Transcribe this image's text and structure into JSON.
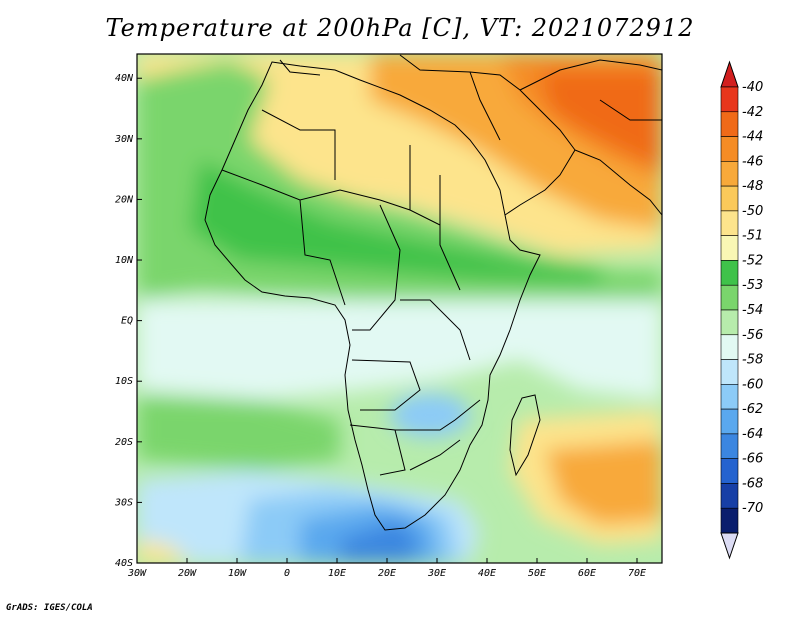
{
  "title": "Temperature at 200hPa [C], VT: 2021072912",
  "credit": "GrADS: IGES/COLA",
  "map": {
    "lon_ticks": [
      "30W",
      "20W",
      "10W",
      "0",
      "10E",
      "20E",
      "30E",
      "40E",
      "50E",
      "60E",
      "70E"
    ],
    "lat_ticks": [
      "40S",
      "30S",
      "20S",
      "10S",
      "EQ",
      "10N",
      "20N",
      "30N",
      "40N"
    ],
    "lon_range": [
      -30,
      75
    ],
    "lat_range": [
      -40,
      44
    ]
  },
  "colorbar": {
    "labels": [
      "-40",
      "-42",
      "-44",
      "-46",
      "-48",
      "-50",
      "-51",
      "-52",
      "-53",
      "-54",
      "-56",
      "-58",
      "-60",
      "-62",
      "-64",
      "-66",
      "-68",
      "-70"
    ],
    "colors": [
      "#e8361c",
      "#f06a18",
      "#f58c25",
      "#f8a93a",
      "#fbc95a",
      "#fde48c",
      "#f9f7b4",
      "#3fc24a",
      "#7ad56c",
      "#b7ecac",
      "#e2f9f3",
      "#bfe6fb",
      "#8ccbf7",
      "#5aa8ee",
      "#3b86e0",
      "#2563cf",
      "#173fa6",
      "#0a1e6d"
    ]
  }
}
